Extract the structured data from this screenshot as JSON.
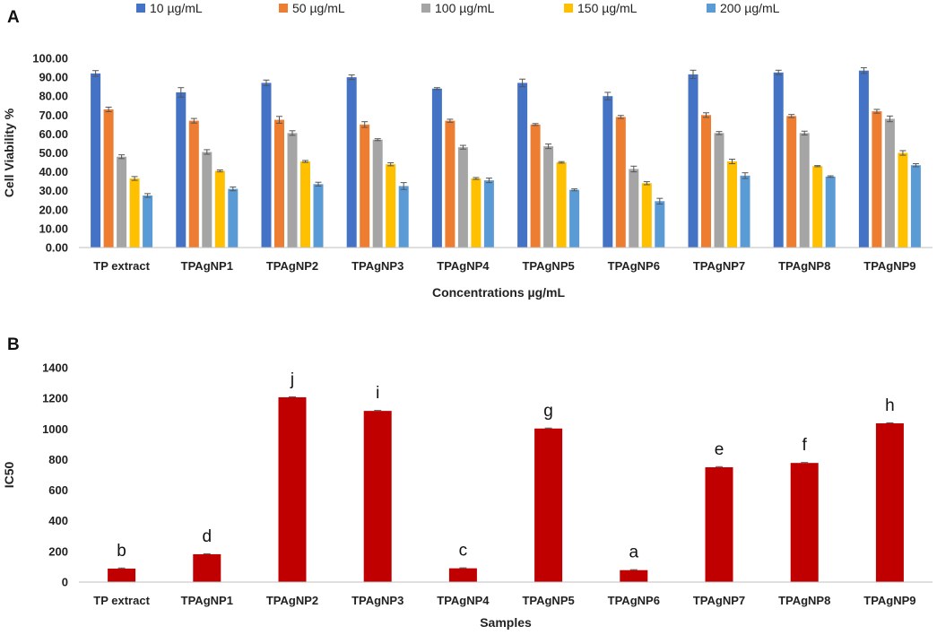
{
  "chart_data": [
    {
      "panel": "A",
      "type": "bar",
      "title": "",
      "xlabel": "Concentrations µg/mL",
      "ylabel": "Cell Viability %",
      "ylim": [
        0,
        100
      ],
      "yticks": [
        "0.00",
        "10.00",
        "20.00",
        "30.00",
        "40.00",
        "50.00",
        "60.00",
        "70.00",
        "80.00",
        "90.00",
        "100.00"
      ],
      "grid": false,
      "legend_position": "top",
      "categories": [
        "TP extract",
        "TPAgNP1",
        "TPAgNP2",
        "TPAgNP3",
        "TPAgNP4",
        "TPAgNP5",
        "TPAgNP6",
        "TPAgNP7",
        "TPAgNP8",
        "TPAgNP9"
      ],
      "series": [
        {
          "name": "10 µg/mL",
          "color": "#4472C4",
          "values": [
            92,
            82,
            87,
            90,
            84,
            87,
            80,
            91.5,
            92.5,
            93.5
          ],
          "errors": [
            1.5,
            2.5,
            1.5,
            1.2,
            0.5,
            2,
            2,
            2.2,
            1.2,
            1.5
          ]
        },
        {
          "name": "50 µg/mL",
          "color": "#ED7D31",
          "values": [
            73,
            67,
            67.5,
            65,
            67,
            65,
            69,
            70,
            69.5,
            72
          ],
          "errors": [
            1.2,
            1.2,
            1.8,
            1.5,
            0.8,
            0.5,
            0.8,
            1.2,
            0.8,
            1
          ]
        },
        {
          "name": "100 µg/mL",
          "color": "#A5A5A5",
          "values": [
            48,
            50.5,
            60.5,
            57,
            53,
            53.5,
            41.5,
            60.5,
            60.5,
            68
          ],
          "errors": [
            1,
            1.2,
            1.2,
            0.5,
            1,
            1.2,
            1.5,
            0.8,
            1,
            1.5
          ]
        },
        {
          "name": "150 µg/mL",
          "color": "#FFC000",
          "values": [
            36.5,
            40.5,
            45.5,
            44,
            36.5,
            45,
            34,
            45.5,
            43,
            50
          ],
          "errors": [
            1,
            0.5,
            0.5,
            0.8,
            0.5,
            0.4,
            0.8,
            1.2,
            0.3,
            1.2
          ]
        },
        {
          "name": "200 µg/mL",
          "color": "#5B9BD5",
          "values": [
            27.5,
            31,
            33.5,
            32.5,
            35.5,
            30.5,
            24.5,
            38,
            37.5,
            43.5
          ],
          "errors": [
            1,
            1,
            1,
            1.8,
            1.2,
            0.5,
            1.5,
            1.5,
            0.4,
            0.8
          ]
        }
      ]
    },
    {
      "panel": "B",
      "type": "bar",
      "title": "",
      "xlabel": "Samples",
      "ylabel": "IC50",
      "ylim": [
        0,
        1400
      ],
      "yticks": [
        "0",
        "200",
        "400",
        "600",
        "800",
        "1000",
        "1200",
        "1400"
      ],
      "grid": false,
      "categories": [
        "TP extract",
        "TPAgNP1",
        "TPAgNP2",
        "TPAgNP3",
        "TPAgNP4",
        "TPAgNP5",
        "TPAgNP6",
        "TPAgNP7",
        "TPAgNP8",
        "TPAgNP9"
      ],
      "series": [
        {
          "name": "IC50",
          "color": "#C00000",
          "values": [
            88,
            182,
            1207,
            1118,
            90,
            1003,
            78,
            750,
            778,
            1037
          ],
          "errors": [
            4,
            3,
            3,
            3,
            3,
            3,
            3,
            4,
            3,
            3
          ]
        }
      ],
      "annotations": [
        "b",
        "d",
        "j",
        "i",
        "c",
        "g",
        "a",
        "e",
        "f",
        "h"
      ]
    }
  ]
}
